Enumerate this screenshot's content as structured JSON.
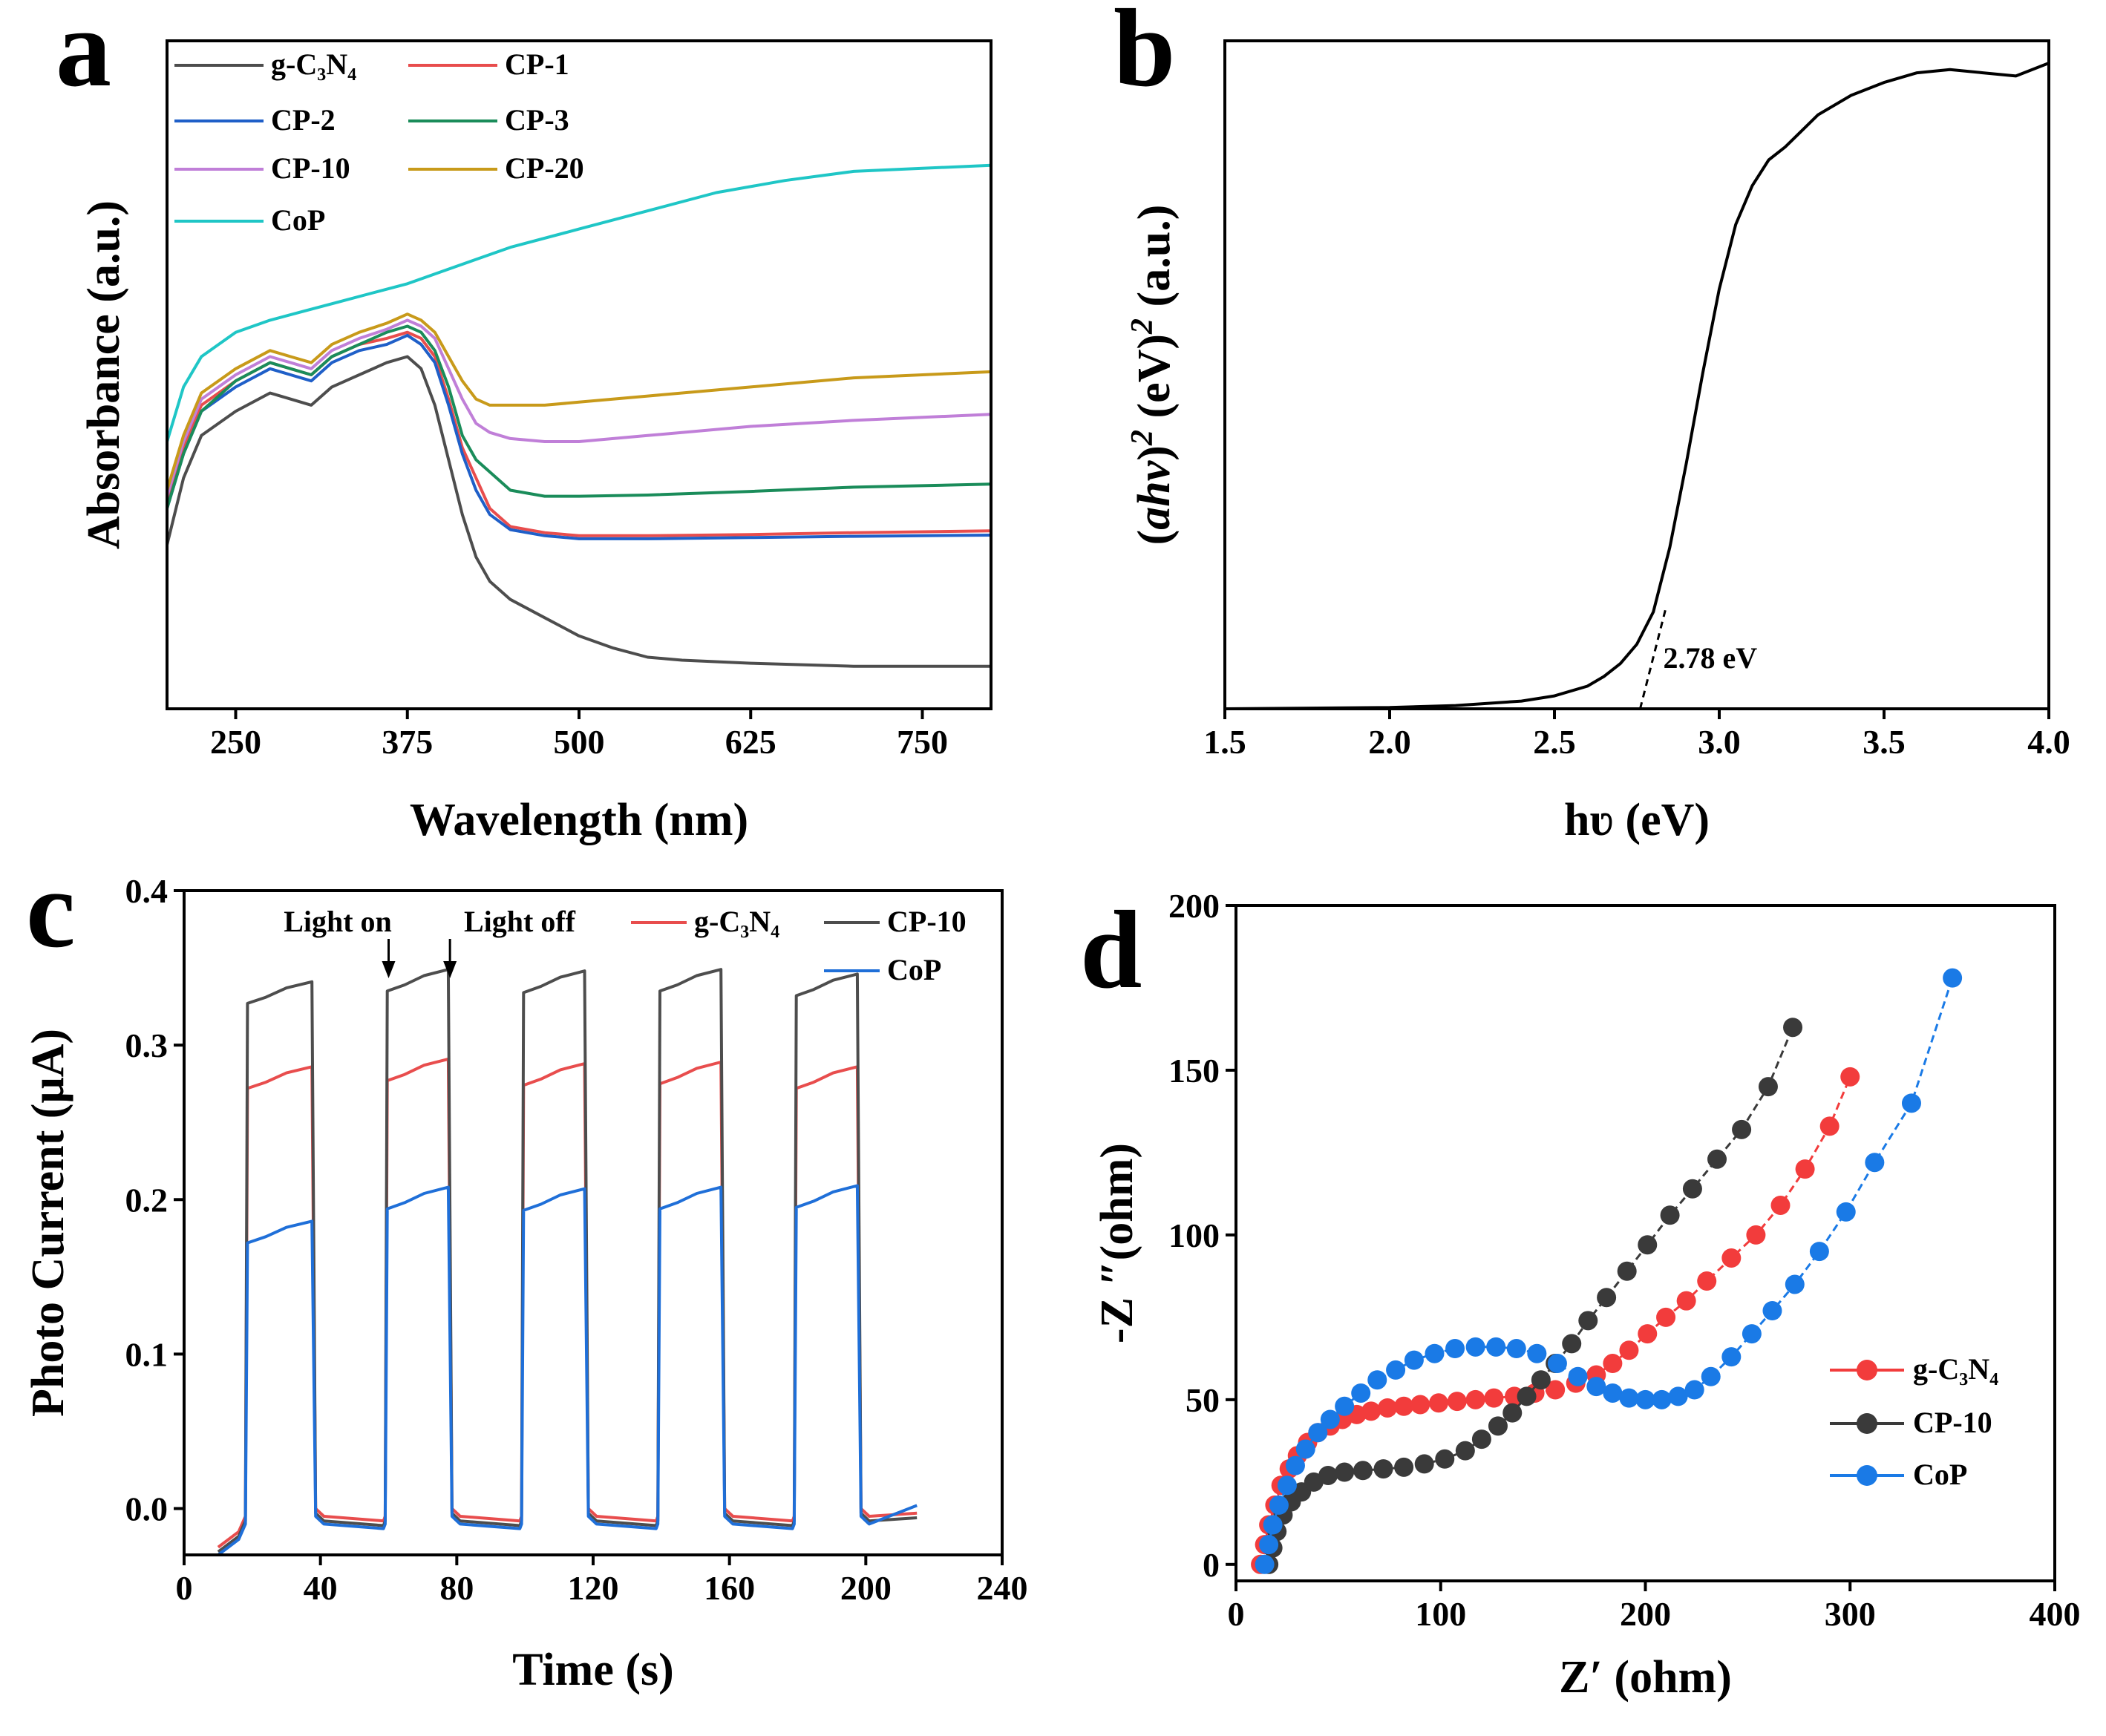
{
  "chart_data": [
    {
      "panel": "a",
      "type": "line",
      "xlabel": "Wavelength (nm)",
      "ylabel": "Absorbance (a.u.)",
      "xlim": [
        200,
        800
      ],
      "ylim": [
        0,
        1.1
      ],
      "xticks": [
        250,
        375,
        500,
        625,
        750
      ],
      "yticks": [],
      "legend": {
        "position": "top-left",
        "columns": 2
      },
      "series": [
        {
          "name": "g-C₃N₄",
          "color": "#4d4d4d",
          "x": [
            200,
            212,
            225,
            250,
            275,
            290,
            305,
            320,
            340,
            360,
            375,
            385,
            395,
            405,
            415,
            425,
            435,
            450,
            475,
            500,
            525,
            550,
            575,
            625,
            700,
            800
          ],
          "y": [
            0.27,
            0.38,
            0.45,
            0.49,
            0.52,
            0.51,
            0.5,
            0.53,
            0.55,
            0.57,
            0.58,
            0.56,
            0.5,
            0.41,
            0.32,
            0.25,
            0.21,
            0.18,
            0.15,
            0.12,
            0.1,
            0.085,
            0.08,
            0.075,
            0.07,
            0.07
          ]
        },
        {
          "name": "CP-1",
          "color": "#e84d4d",
          "x": [
            200,
            212,
            225,
            250,
            275,
            290,
            305,
            320,
            340,
            360,
            375,
            385,
            395,
            405,
            415,
            425,
            435,
            450,
            475,
            500,
            550,
            625,
            700,
            800
          ],
          "y": [
            0.34,
            0.43,
            0.5,
            0.54,
            0.57,
            0.56,
            0.55,
            0.58,
            0.6,
            0.61,
            0.62,
            0.61,
            0.58,
            0.51,
            0.43,
            0.38,
            0.33,
            0.3,
            0.29,
            0.285,
            0.285,
            0.287,
            0.29,
            0.293
          ]
        },
        {
          "name": "CP-2",
          "color": "#1f5fc8",
          "x": [
            200,
            212,
            225,
            250,
            275,
            290,
            305,
            320,
            340,
            360,
            375,
            385,
            395,
            405,
            415,
            425,
            435,
            450,
            475,
            500,
            550,
            625,
            700,
            800
          ],
          "y": [
            0.33,
            0.42,
            0.49,
            0.53,
            0.56,
            0.55,
            0.54,
            0.57,
            0.59,
            0.6,
            0.615,
            0.6,
            0.57,
            0.5,
            0.42,
            0.36,
            0.32,
            0.295,
            0.285,
            0.28,
            0.28,
            0.282,
            0.284,
            0.286
          ]
        },
        {
          "name": "CP-3",
          "color": "#1a8c5a",
          "x": [
            200,
            212,
            225,
            250,
            275,
            290,
            305,
            320,
            340,
            360,
            375,
            385,
            395,
            405,
            415,
            425,
            435,
            450,
            475,
            500,
            550,
            625,
            700,
            800
          ],
          "y": [
            0.33,
            0.42,
            0.49,
            0.54,
            0.57,
            0.56,
            0.55,
            0.58,
            0.6,
            0.62,
            0.63,
            0.62,
            0.59,
            0.53,
            0.45,
            0.41,
            0.39,
            0.36,
            0.35,
            0.35,
            0.352,
            0.358,
            0.365,
            0.37
          ]
        },
        {
          "name": "CP-10",
          "color": "#c07fd8",
          "x": [
            200,
            212,
            225,
            250,
            275,
            290,
            305,
            320,
            340,
            360,
            375,
            385,
            395,
            405,
            415,
            425,
            435,
            450,
            475,
            500,
            550,
            625,
            700,
            800
          ],
          "y": [
            0.35,
            0.44,
            0.51,
            0.55,
            0.58,
            0.57,
            0.56,
            0.59,
            0.61,
            0.625,
            0.64,
            0.63,
            0.61,
            0.56,
            0.51,
            0.47,
            0.455,
            0.445,
            0.44,
            0.44,
            0.45,
            0.465,
            0.475,
            0.485
          ]
        },
        {
          "name": "CP-20",
          "color": "#c89a1a",
          "x": [
            200,
            212,
            225,
            250,
            275,
            290,
            305,
            320,
            340,
            360,
            375,
            385,
            395,
            405,
            415,
            425,
            435,
            450,
            475,
            500,
            550,
            625,
            700,
            800
          ],
          "y": [
            0.36,
            0.45,
            0.52,
            0.56,
            0.59,
            0.58,
            0.57,
            0.6,
            0.62,
            0.635,
            0.65,
            0.64,
            0.62,
            0.58,
            0.54,
            0.51,
            0.5,
            0.5,
            0.5,
            0.505,
            0.515,
            0.53,
            0.545,
            0.555
          ]
        },
        {
          "name": "CoP",
          "color": "#1fc6c6",
          "x": [
            200,
            212,
            225,
            250,
            275,
            300,
            325,
            350,
            375,
            400,
            425,
            450,
            500,
            550,
            600,
            650,
            700,
            750,
            800
          ],
          "y": [
            0.44,
            0.53,
            0.58,
            0.62,
            0.64,
            0.655,
            0.67,
            0.685,
            0.7,
            0.72,
            0.74,
            0.76,
            0.79,
            0.82,
            0.85,
            0.87,
            0.885,
            0.89,
            0.895
          ]
        }
      ]
    },
    {
      "panel": "b",
      "type": "line",
      "xlabel": "hʋ (eV)",
      "ylabel_parts": [
        "(",
        "ahν",
        ")",
        "2",
        " (eV)",
        "2",
        " (a.u.)"
      ],
      "xlim": [
        1.5,
        4.0
      ],
      "ylim": [
        0,
        1.0
      ],
      "xticks": [
        "1.5",
        "2.0",
        "2.5",
        "3.0",
        "3.5",
        "4.0"
      ],
      "annotation": "2.78 eV",
      "band_gap_eV": 2.78,
      "series": [
        {
          "name": "sample",
          "color": "#000000",
          "x": [
            1.5,
            2.0,
            2.2,
            2.4,
            2.5,
            2.6,
            2.65,
            2.7,
            2.75,
            2.8,
            2.85,
            2.9,
            2.95,
            3.0,
            3.05,
            3.1,
            3.15,
            3.2,
            3.3,
            3.4,
            3.5,
            3.6,
            3.7,
            3.8,
            3.9,
            4.0
          ],
          "y": [
            0.0,
            0.002,
            0.005,
            0.012,
            0.02,
            0.035,
            0.05,
            0.07,
            0.1,
            0.15,
            0.25,
            0.38,
            0.52,
            0.65,
            0.75,
            0.81,
            0.85,
            0.87,
            0.92,
            0.95,
            0.97,
            0.985,
            0.99,
            0.985,
            0.98,
            1.0
          ]
        }
      ],
      "tangent": {
        "x": [
          2.76,
          2.84
        ],
        "y": [
          0.0,
          0.16
        ]
      }
    },
    {
      "panel": "c",
      "type": "line",
      "xlabel": "Time (s)",
      "ylabel": "Photo Current (μA)",
      "xlim": [
        0,
        240
      ],
      "ylim": [
        -0.03,
        0.4
      ],
      "xticks": [
        "0",
        "40",
        "80",
        "120",
        "160",
        "200",
        "240"
      ],
      "yticks": [
        "0.0",
        "0.1",
        "0.2",
        "0.3",
        "0.4"
      ],
      "annotations": [
        "Light on",
        "Light off"
      ],
      "legend": {
        "position": "top-right"
      },
      "light_on_times": [
        18,
        59,
        99,
        139,
        179
      ],
      "light_off_times": [
        38,
        78,
        118,
        158,
        198
      ],
      "series": [
        {
          "name": "g-C₃N₄",
          "color": "#e84d4d",
          "plateau": [
            0.28,
            0.285,
            0.282,
            0.283,
            0.28
          ],
          "baseline": -0.005
        },
        {
          "name": "CP-10",
          "color": "#4d4d4d",
          "plateau": [
            0.335,
            0.343,
            0.342,
            0.343,
            0.34
          ],
          "baseline": -0.008
        },
        {
          "name": "CoP",
          "color": "#1f6fd8",
          "plateau": [
            0.18,
            0.202,
            0.201,
            0.202,
            0.203
          ],
          "baseline": -0.01
        }
      ]
    },
    {
      "panel": "d",
      "type": "scatter",
      "xlabel": "Z′ (ohm)",
      "ylabel": "-Z ″(ohm)",
      "xlim": [
        0,
        400
      ],
      "ylim": [
        -5,
        200
      ],
      "xticks": [
        "0",
        "100",
        "200",
        "300",
        "400"
      ],
      "yticks": [
        "0",
        "50",
        "100",
        "150",
        "200"
      ],
      "legend": {
        "position": "bottom-right"
      },
      "series": [
        {
          "name": "g-C₃N₄",
          "color": "#f23c3c",
          "x": [
            12,
            14,
            16,
            19,
            22,
            26,
            30,
            35,
            40,
            46,
            52,
            59,
            66,
            74,
            82,
            90,
            99,
            108,
            117,
            126,
            136,
            146,
            156,
            166,
            176,
            184,
            192,
            201,
            210,
            220,
            230,
            242,
            254,
            266,
            278,
            290,
            300
          ],
          "y": [
            0,
            6,
            12,
            18,
            24,
            29,
            33,
            37,
            40,
            42,
            44,
            45.5,
            46.5,
            47.5,
            48,
            48.5,
            49,
            49.5,
            50,
            50.5,
            51,
            52,
            53,
            55,
            57.5,
            61,
            65,
            70,
            75,
            80,
            86,
            93,
            100,
            109,
            120,
            133,
            148
          ]
        },
        {
          "name": "CP-10",
          "color": "#3a3a3a",
          "x": [
            16,
            18,
            20,
            23,
            27,
            32,
            38,
            45,
            53,
            62,
            72,
            82,
            92,
            102,
            112,
            120,
            128,
            135,
            142,
            149,
            156,
            164,
            172,
            181,
            191,
            201,
            212,
            223,
            235,
            247,
            260,
            272
          ],
          "y": [
            0,
            5,
            10,
            15,
            19,
            22,
            25,
            27,
            28,
            28.5,
            29,
            29.5,
            30.5,
            32,
            34.5,
            38,
            42,
            46,
            51,
            56,
            61,
            67,
            74,
            81,
            89,
            97,
            106,
            114,
            123,
            132,
            145,
            163
          ]
        },
        {
          "name": "CoP",
          "color": "#1a7ae6",
          "x": [
            14,
            16,
            18,
            21,
            25,
            29,
            34,
            40,
            46,
            53,
            61,
            69,
            78,
            87,
            97,
            107,
            117,
            127,
            137,
            147,
            157,
            167,
            176,
            184,
            192,
            200,
            208,
            216,
            224,
            232,
            242,
            252,
            262,
            273,
            285,
            298,
            312,
            330,
            350
          ],
          "y": [
            0,
            6,
            12,
            18,
            24,
            30,
            35,
            40,
            44,
            48,
            52,
            56,
            59,
            62,
            64,
            65.5,
            66,
            66,
            65.5,
            64,
            61,
            57,
            54,
            52,
            50.5,
            50,
            50,
            51,
            53,
            57,
            63,
            70,
            77,
            85,
            95,
            107,
            122,
            140,
            178
          ]
        }
      ]
    }
  ]
}
